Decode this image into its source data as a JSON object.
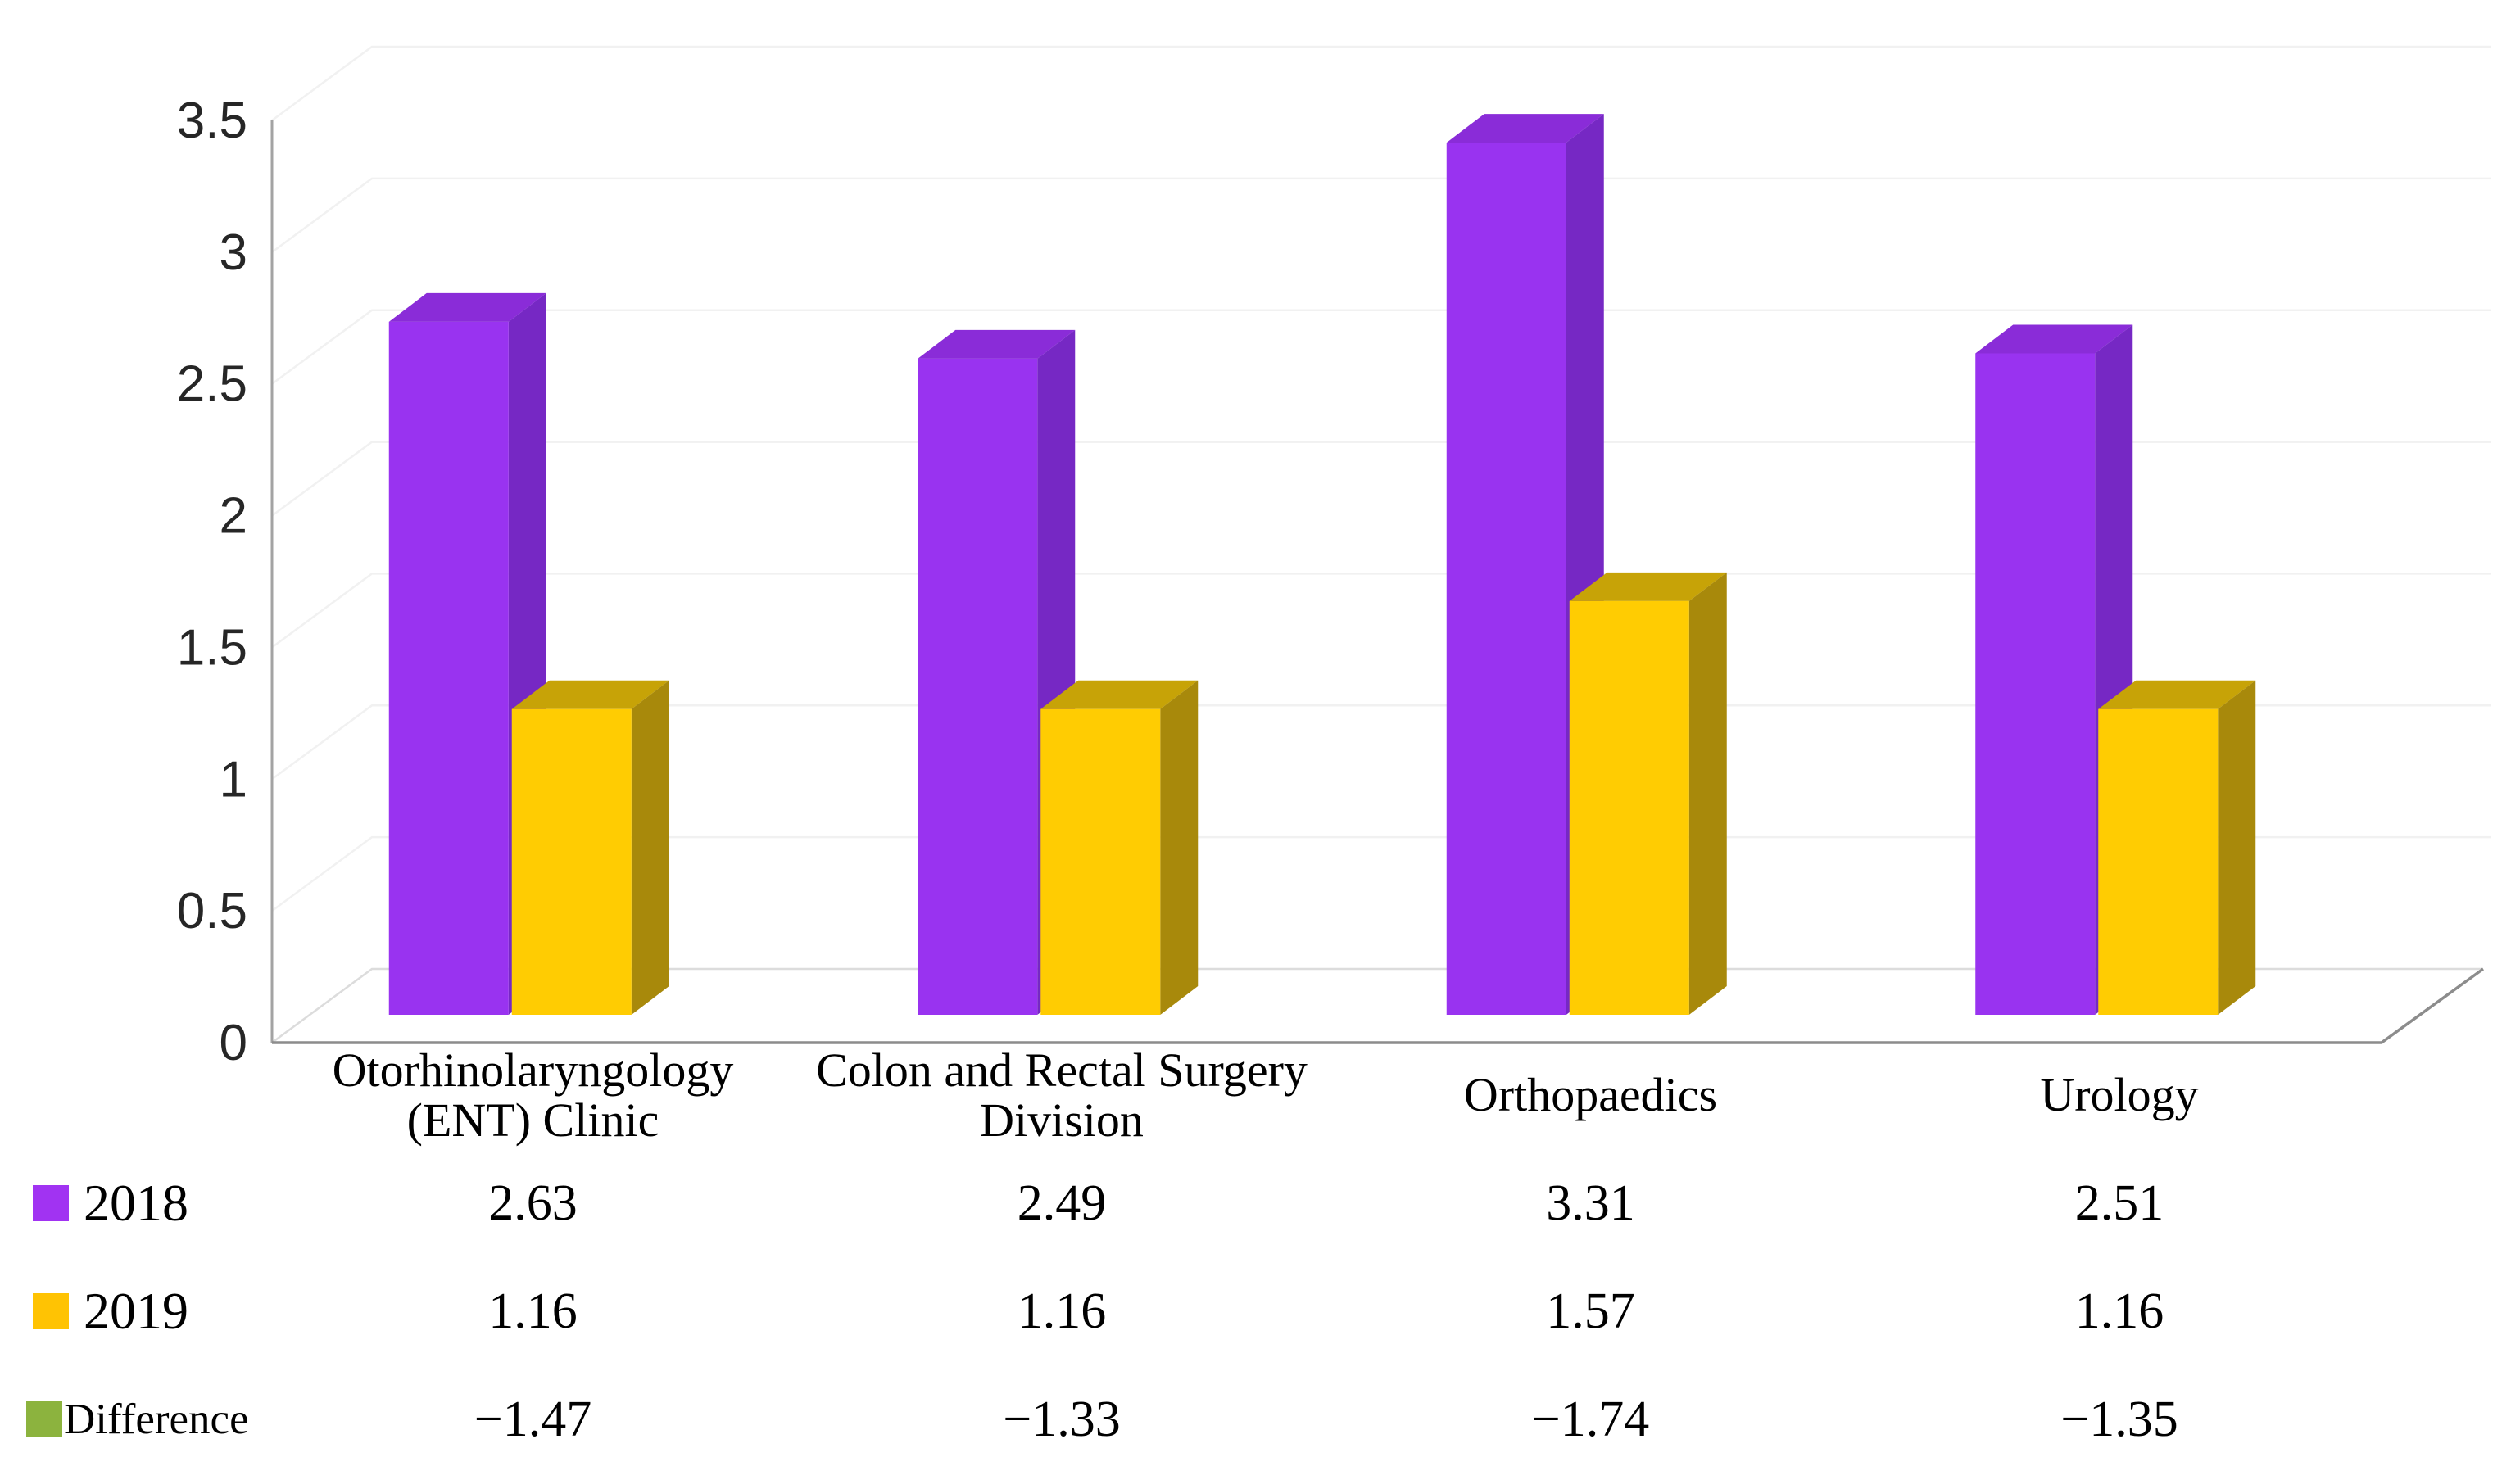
{
  "chart_data": {
    "type": "bar",
    "subtype": "3d-clustered-column",
    "title": "",
    "xlabel": "",
    "ylabel": "",
    "categories": [
      "Otorhinolaryngology (ENT) Clinic",
      "Colon and Rectal Surgery Division",
      "Orthopaedics",
      "Urology"
    ],
    "series": [
      {
        "name": "2018",
        "values": [
          2.63,
          2.49,
          3.31,
          2.51
        ],
        "colors": {
          "front": "#9933F0",
          "top": "#8A2CD8",
          "side": "#7628C4",
          "legend": "#A133F2"
        }
      },
      {
        "name": "2019",
        "values": [
          1.16,
          1.16,
          1.57,
          1.16
        ],
        "colors": {
          "front": "#FFCC02",
          "top": "#C7A307",
          "side": "#A8890B",
          "legend": "#FFC303"
        }
      }
    ],
    "extra_rows": [
      {
        "name": "Difference",
        "values": [
          -1.47,
          -1.33,
          -1.74,
          -1.35
        ],
        "colors": {
          "legend": "#8CB33E"
        }
      }
    ],
    "ylim": [
      0,
      3.5
    ],
    "yticks": [
      "0",
      "0.5",
      "1",
      "1.5",
      "2",
      "2.5",
      "3",
      "3.5"
    ],
    "grid": true,
    "legend_position": "table-rows-left",
    "colors": {
      "grid_line": "#F1F1F1",
      "floor_line": "#DCDCDC",
      "axis_line": "#A3A3A3",
      "baseline": "#8C8C8C",
      "table_border": "#7F7F7F",
      "tick_text": "#262626",
      "cell_text": "#000000",
      "background": "#FFFFFF"
    }
  }
}
